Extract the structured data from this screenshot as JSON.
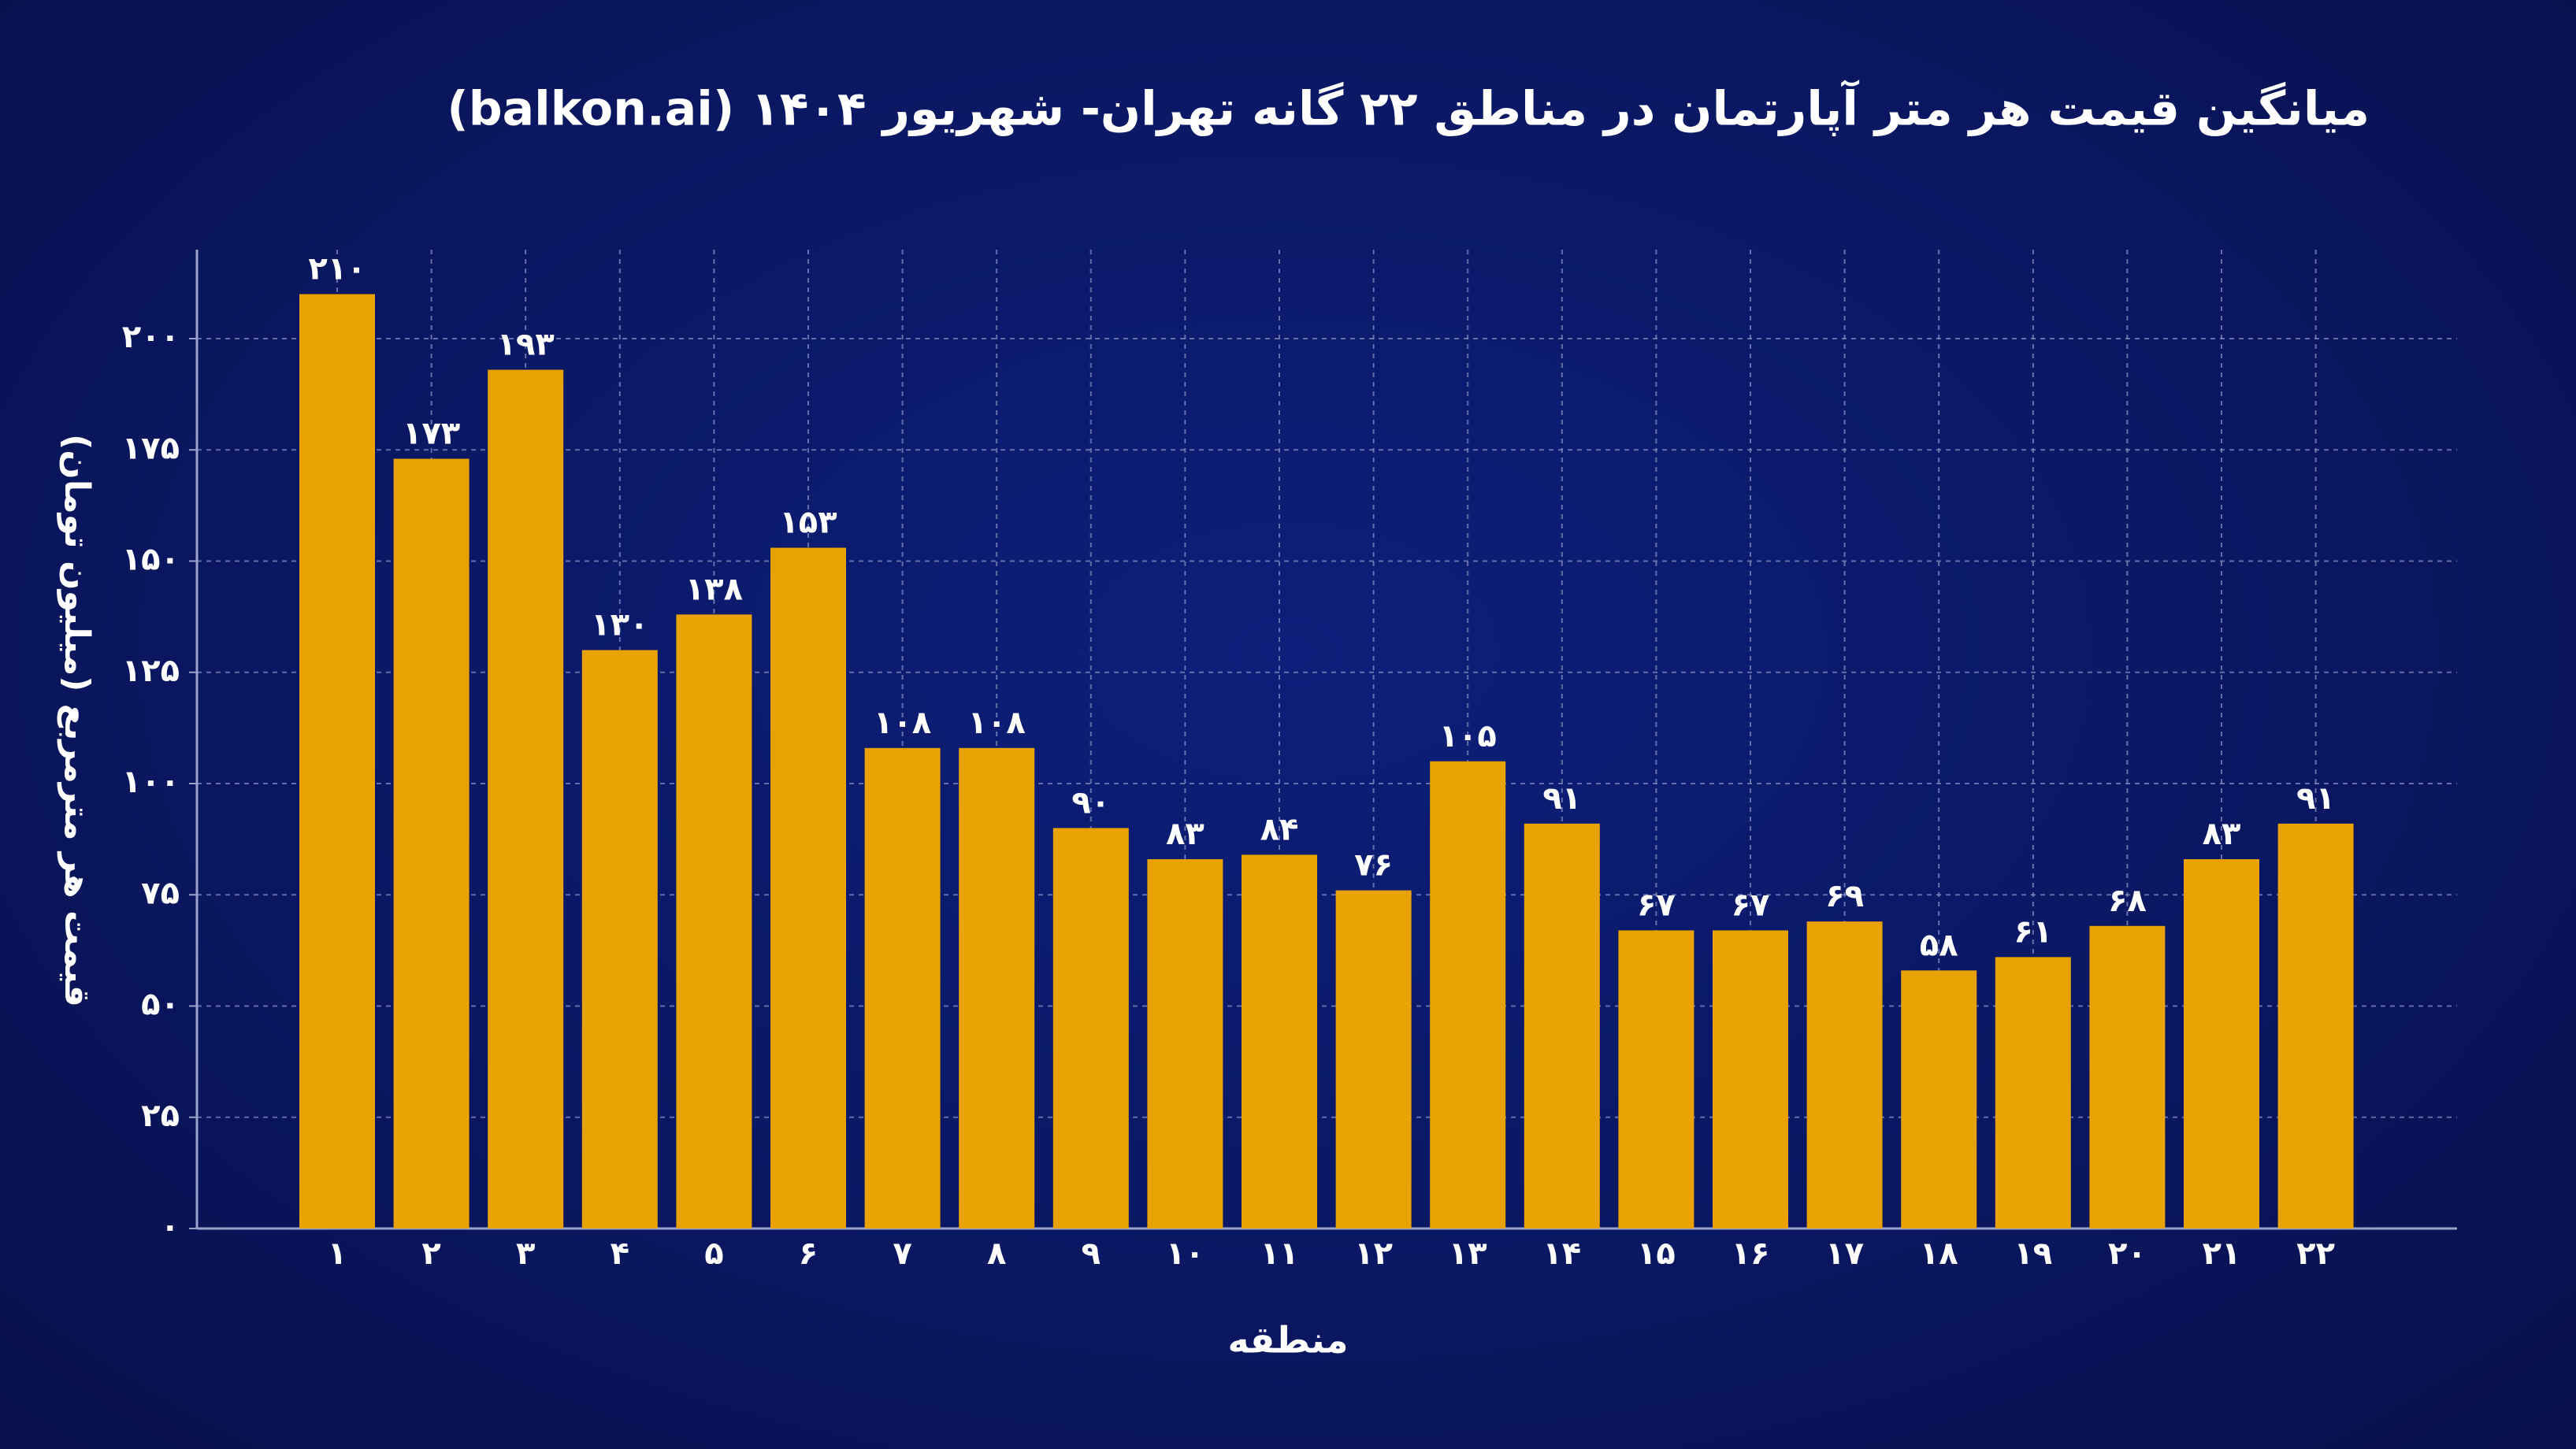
{
  "chart_data": {
    "type": "bar",
    "title": "میانگین قیمت هر متر آپارتمان در مناطق ۲۲ گانه تهران- شهریور ۱۴۰۴ (balkon.ai)",
    "x_label": "منطقه",
    "y_label": "قیمت هر مترمربع (میلیون تومان)",
    "categories": [
      "۱",
      "۲",
      "۳",
      "۴",
      "۵",
      "۶",
      "۷",
      "۸",
      "۹",
      "۱۰",
      "۱۱",
      "۱۲",
      "۱۳",
      "۱۴",
      "۱۵",
      "۱۶",
      "۱۷",
      "۱۸",
      "۱۹",
      "۲۰",
      "۲۱",
      "۲۲"
    ],
    "values": [
      210,
      173,
      193,
      130,
      138,
      153,
      108,
      108,
      90,
      83,
      84,
      76,
      105,
      91,
      67,
      67,
      69,
      58,
      61,
      68,
      83,
      91
    ],
    "value_labels": [
      "۲۱۰",
      "۱۷۳",
      "۱۹۳",
      "۱۳۰",
      "۱۳۸",
      "۱۵۳",
      "۱۰۸",
      "۱۰۸",
      "۹۰",
      "۸۳",
      "۸۴",
      "۷۶",
      "۱۰۵",
      "۹۱",
      "۶۷",
      "۶۷",
      "۶۹",
      "۵۸",
      "۶۱",
      "۶۸",
      "۸۳",
      "۹۱"
    ],
    "color": "#e8a202",
    "ylim": [
      0,
      220
    ],
    "yticks": [
      {
        "value": 0,
        "label": "۰"
      },
      {
        "value": 25,
        "label": "۲۵"
      },
      {
        "value": 50,
        "label": "۵۰"
      },
      {
        "value": 75,
        "label": "۷۵"
      },
      {
        "value": 100,
        "label": "۱۰۰"
      },
      {
        "value": 125,
        "label": "۱۲۵"
      },
      {
        "value": 150,
        "label": "۱۵۰"
      },
      {
        "value": 175,
        "label": "۱۷۵"
      },
      {
        "value": 200,
        "label": "۲۰۰"
      }
    ],
    "grid": true
  }
}
